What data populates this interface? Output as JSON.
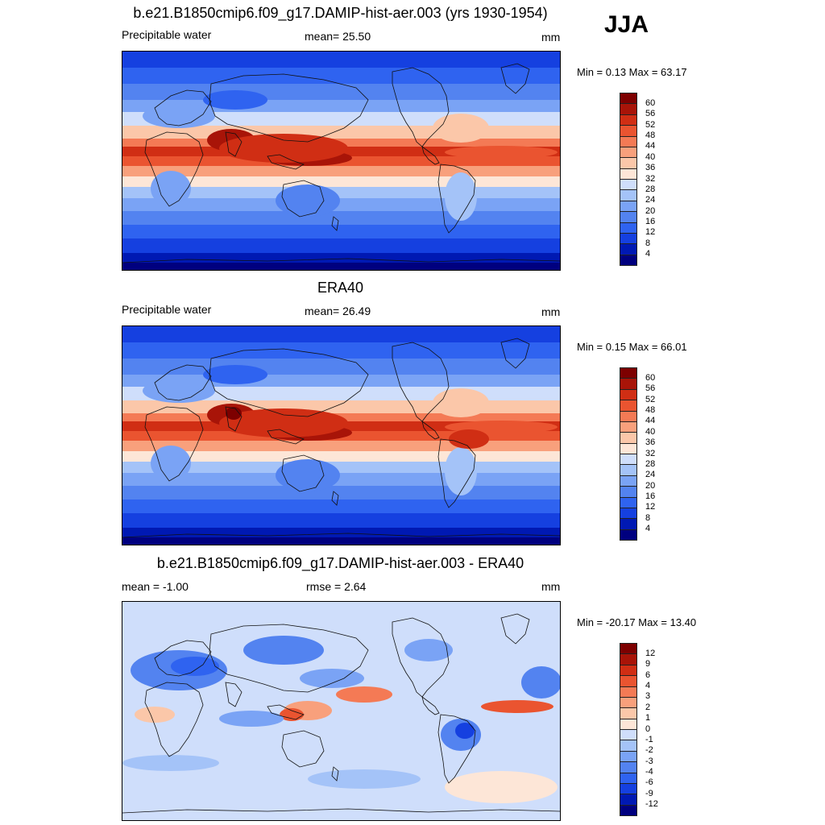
{
  "season": "JJA",
  "panels": [
    {
      "title": "b.e21.B1850cmip6.f09_g17.DAMIP-hist-aer.003 (yrs 1930-1954)",
      "left_label": "Precipitable water",
      "center_label": "mean=  25.50",
      "units": "mm",
      "minmax": "Min =   0.13 Max =  63.17",
      "kind": "field",
      "colors": [
        "#00007f",
        "#0019b3",
        "#1540e0",
        "#2f63f0",
        "#5383f0",
        "#7aa3f5",
        "#a4c3f8",
        "#cfdefb",
        "#fde6d7",
        "#fbc7a9",
        "#f8a07c",
        "#f47a55",
        "#ea5430",
        "#d02e14",
        "#a81408",
        "#7d0000"
      ],
      "labels": [
        "4",
        "8",
        "12",
        "16",
        "20",
        "24",
        "28",
        "32",
        "36",
        "40",
        "44",
        "48",
        "52",
        "56",
        "60"
      ]
    },
    {
      "title": "ERA40",
      "left_label": "Precipitable water",
      "center_label": "mean=  26.49",
      "units": "mm",
      "minmax": "Min =   0.15 Max =  66.01",
      "kind": "field",
      "colors": [
        "#00007f",
        "#0019b3",
        "#1540e0",
        "#2f63f0",
        "#5383f0",
        "#7aa3f5",
        "#a4c3f8",
        "#cfdefb",
        "#fde6d7",
        "#fbc7a9",
        "#f8a07c",
        "#f47a55",
        "#ea5430",
        "#d02e14",
        "#a81408",
        "#7d0000"
      ],
      "labels": [
        "4",
        "8",
        "12",
        "16",
        "20",
        "24",
        "28",
        "32",
        "36",
        "40",
        "44",
        "48",
        "52",
        "56",
        "60"
      ]
    },
    {
      "title": "b.e21.B1850cmip6.f09_g17.DAMIP-hist-aer.003 - ERA40",
      "left_label": "mean =  -1.00",
      "center_label": "rmse =   2.64",
      "units": "mm",
      "minmax": "Min = -20.17 Max =  13.40",
      "kind": "diff",
      "colors": [
        "#00007f",
        "#0019b3",
        "#1540e0",
        "#2f63f0",
        "#5383f0",
        "#7aa3f5",
        "#a4c3f8",
        "#cfdefb",
        "#fde6d7",
        "#fbc7a9",
        "#f8a07c",
        "#f47a55",
        "#ea5430",
        "#d02e14",
        "#a81408",
        "#7d0000"
      ],
      "labels": [
        "-12",
        "-9",
        "-6",
        "-4",
        "-3",
        "-2",
        "-1",
        "0",
        "1",
        "2",
        "3",
        "4",
        "6",
        "9",
        "12"
      ]
    }
  ]
}
